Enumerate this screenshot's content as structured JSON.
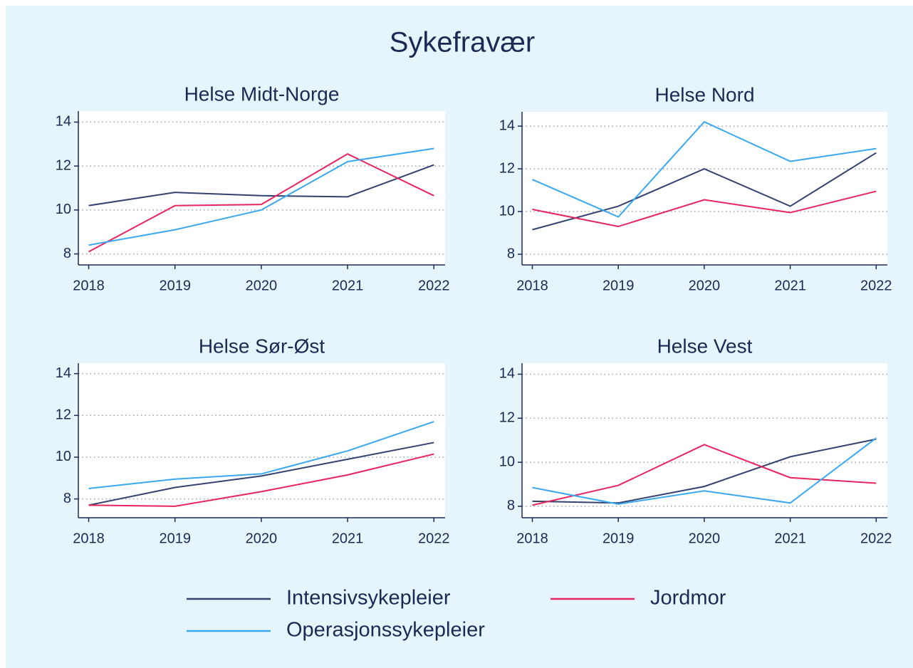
{
  "title": "Sykefravær",
  "chart_data": [
    {
      "type": "line",
      "title": "Helse Midt-Norge",
      "x": [
        2018,
        2019,
        2020,
        2021,
        2022
      ],
      "xlim": [
        2017.88,
        2022.13
      ],
      "xticks": [
        2018,
        2019,
        2020,
        2021,
        2022
      ],
      "ylim": [
        7.5,
        14.5
      ],
      "yticks": [
        8,
        10,
        12,
        14
      ],
      "grid": true,
      "series": [
        {
          "name": "Intensivsykepleier",
          "color": "#34426f",
          "values": [
            10.2,
            10.8,
            10.65,
            10.6,
            12.05
          ]
        },
        {
          "name": "Jordmor",
          "color": "#e8245f",
          "values": [
            8.1,
            10.2,
            10.25,
            12.55,
            10.65
          ]
        },
        {
          "name": "Operasjonssykepleier",
          "color": "#3aa8f0",
          "values": [
            8.4,
            9.1,
            10.0,
            12.2,
            12.8
          ]
        }
      ]
    },
    {
      "type": "line",
      "title": "Helse Nord",
      "x": [
        2018,
        2019,
        2020,
        2021,
        2022
      ],
      "xlim": [
        2017.88,
        2022.13
      ],
      "xticks": [
        2018,
        2019,
        2020,
        2021,
        2022
      ],
      "ylim": [
        7.5,
        14.67
      ],
      "yticks": [
        8,
        10,
        12,
        14
      ],
      "grid": true,
      "series": [
        {
          "name": "Intensivsykepleier",
          "color": "#34426f",
          "values": [
            9.15,
            10.25,
            12.0,
            10.25,
            12.75
          ]
        },
        {
          "name": "Jordmor",
          "color": "#e8245f",
          "values": [
            10.1,
            9.3,
            10.55,
            9.95,
            10.95
          ]
        },
        {
          "name": "Operasjonssykepleier",
          "color": "#3aa8f0",
          "values": [
            11.5,
            9.75,
            14.2,
            12.35,
            12.95
          ]
        }
      ]
    },
    {
      "type": "line",
      "title": "Helse Sør-Øst",
      "x": [
        2018,
        2019,
        2020,
        2021,
        2022
      ],
      "xlim": [
        2017.88,
        2022.13
      ],
      "xticks": [
        2018,
        2019,
        2020,
        2021,
        2022
      ],
      "ylim": [
        7.1,
        14.5
      ],
      "yticks": [
        8,
        10,
        12,
        14
      ],
      "grid": true,
      "series": [
        {
          "name": "Intensivsykepleier",
          "color": "#34426f",
          "values": [
            7.7,
            8.55,
            9.1,
            9.9,
            10.7
          ]
        },
        {
          "name": "Jordmor",
          "color": "#e8245f",
          "values": [
            7.7,
            7.65,
            8.35,
            9.15,
            10.15
          ]
        },
        {
          "name": "Operasjonssykepleier",
          "color": "#3aa8f0",
          "values": [
            8.5,
            8.95,
            9.2,
            10.3,
            11.7
          ]
        }
      ]
    },
    {
      "type": "line",
      "title": "Helse Vest",
      "x": [
        2018,
        2019,
        2020,
        2021,
        2022
      ],
      "xlim": [
        2017.88,
        2022.13
      ],
      "xticks": [
        2018,
        2019,
        2020,
        2021,
        2022
      ],
      "ylim": [
        7.48,
        14.5
      ],
      "yticks": [
        8,
        10,
        12,
        14
      ],
      "grid": true,
      "series": [
        {
          "name": "Intensivsykepleier",
          "color": "#34426f",
          "values": [
            8.23,
            8.15,
            8.9,
            10.25,
            11.05
          ]
        },
        {
          "name": "Jordmor",
          "color": "#e8245f",
          "values": [
            8.05,
            8.95,
            10.8,
            9.3,
            9.05
          ]
        },
        {
          "name": "Operasjonssykepleier",
          "color": "#3aa8f0",
          "values": [
            8.85,
            8.1,
            8.7,
            8.15,
            11.1
          ]
        }
      ]
    }
  ]
}
